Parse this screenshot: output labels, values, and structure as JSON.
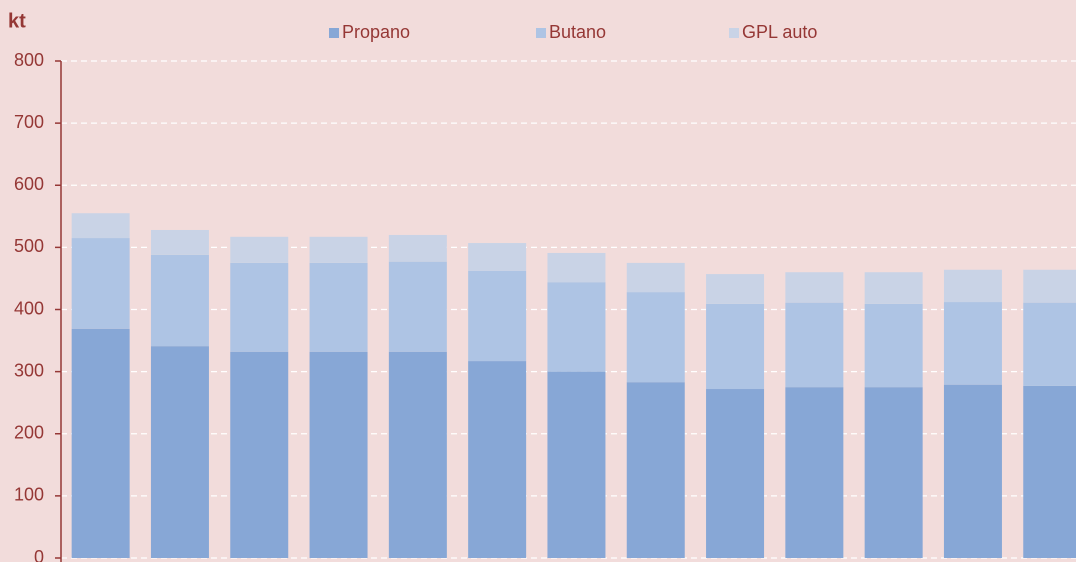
{
  "chart_data": {
    "type": "stacked-bar",
    "y_label": "kt",
    "categories": [
      null,
      null,
      null,
      null,
      null,
      null,
      null,
      null,
      null,
      null,
      null,
      null,
      null
    ],
    "series": [
      {
        "name": "Propano",
        "color": "#87a7d6",
        "values": [
          369,
          341,
          332,
          332,
          332,
          317,
          300,
          283,
          272,
          275,
          275,
          279,
          277
        ]
      },
      {
        "name": "Butano",
        "color": "#aec4e4",
        "values": [
          146,
          147,
          143,
          143,
          145,
          145,
          144,
          145,
          137,
          136,
          134,
          133,
          134
        ]
      },
      {
        "name": "GPL auto",
        "color": "#c9d3e6",
        "values": [
          40,
          40,
          42,
          42,
          43,
          45,
          47,
          47,
          48,
          49,
          51,
          52,
          53
        ]
      }
    ],
    "ylim": [
      0,
      800
    ],
    "yticks": [
      0,
      100,
      200,
      300,
      400,
      500,
      600,
      700,
      800
    ],
    "grid": true,
    "legend": "top"
  }
}
